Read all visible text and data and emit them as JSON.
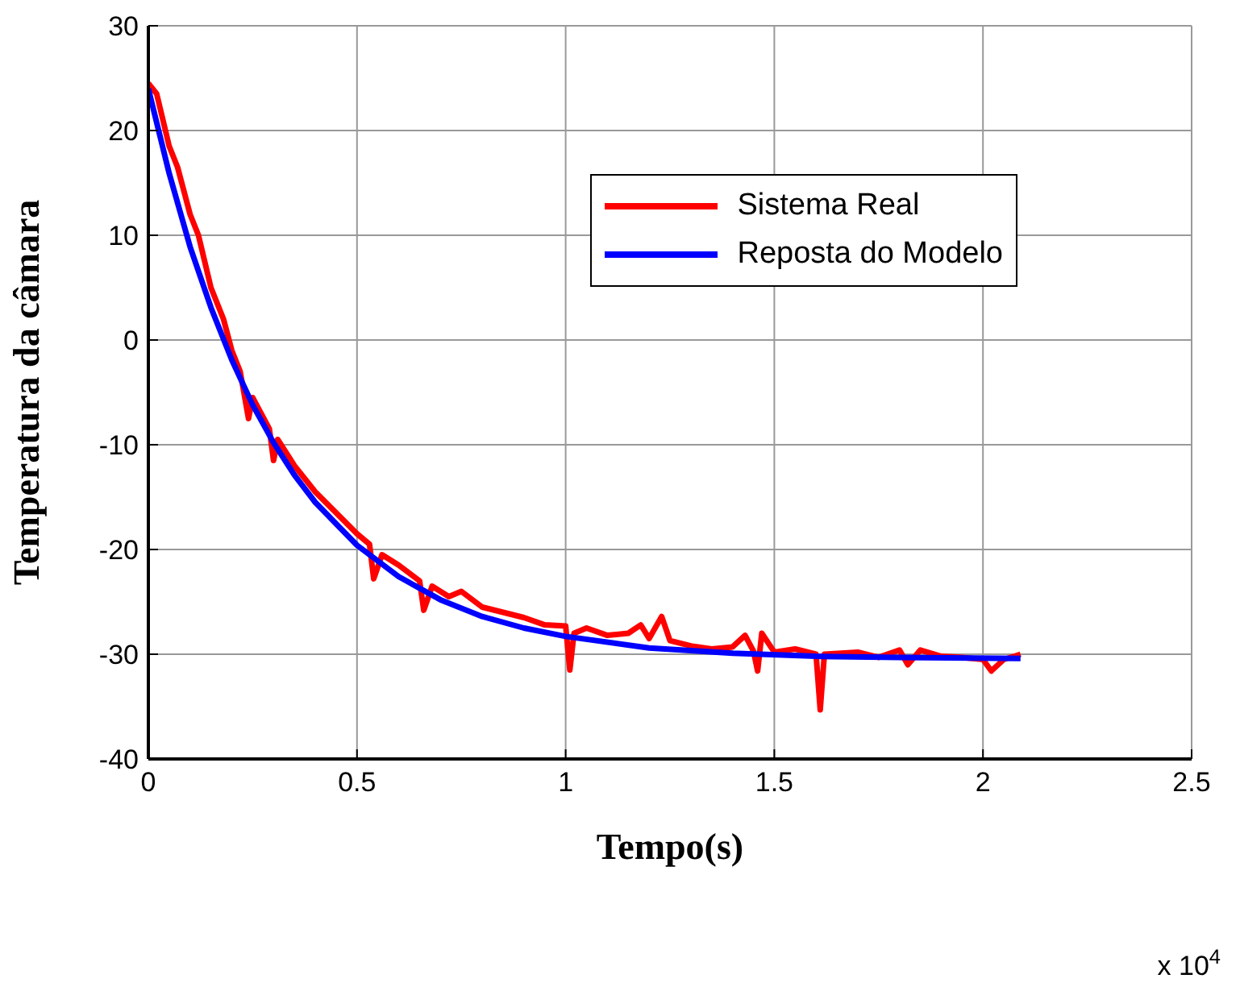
{
  "chart_data": {
    "type": "line",
    "xlabel": "Tempo(s)",
    "ylabel": "Temperatura da câmara",
    "annotations": [
      "x 10$^{4}$"
    ],
    "xlim": [
      0,
      2.5
    ],
    "xticks": [
      0,
      0.5,
      1,
      1.5,
      2,
      2.5
    ],
    "ylim": [
      -40,
      30
    ],
    "yticks": [
      -40,
      -30,
      -20,
      -10,
      0,
      10,
      20,
      30
    ],
    "grid": true,
    "legend": "top right",
    "line_style": "solid",
    "marker": "none",
    "series": [
      {
        "name": "Sistema Real",
        "color": "#ff0000",
        "x": [
          0,
          0.02,
          0.05,
          0.07,
          0.1,
          0.12,
          0.15,
          0.18,
          0.2,
          0.22,
          0.24,
          0.25,
          0.27,
          0.29,
          0.3,
          0.31,
          0.35,
          0.4,
          0.45,
          0.5,
          0.53,
          0.54,
          0.56,
          0.6,
          0.65,
          0.66,
          0.68,
          0.72,
          0.75,
          0.8,
          0.85,
          0.9,
          0.95,
          1.0,
          1.01,
          1.02,
          1.05,
          1.1,
          1.15,
          1.18,
          1.2,
          1.23,
          1.25,
          1.3,
          1.35,
          1.4,
          1.43,
          1.45,
          1.46,
          1.47,
          1.5,
          1.55,
          1.6,
          1.61,
          1.62,
          1.7,
          1.75,
          1.8,
          1.82,
          1.85,
          1.9,
          1.95,
          2.0,
          2.02,
          2.05,
          2.09
        ],
        "values": [
          24.5,
          23.5,
          18.5,
          16.5,
          12,
          10,
          5,
          2,
          -1,
          -3,
          -7.5,
          -5.5,
          -7,
          -8.5,
          -11.5,
          -9.5,
          -12,
          -14.5,
          -16.5,
          -18.5,
          -19.5,
          -22.8,
          -20.5,
          -21.5,
          -23,
          -25.8,
          -23.5,
          -24.5,
          -24,
          -25.5,
          -26,
          -26.5,
          -27.2,
          -27.3,
          -31.5,
          -28,
          -27.5,
          -28.2,
          -28,
          -27.2,
          -28.5,
          -26.4,
          -28.7,
          -29.2,
          -29.5,
          -29.3,
          -28.2,
          -29.7,
          -31.6,
          -28,
          -29.8,
          -29.5,
          -30,
          -35.3,
          -30,
          -29.8,
          -30.3,
          -29.6,
          -31,
          -29.6,
          -30.2,
          -30.3,
          -30.5,
          -31.6,
          -30.5,
          -30
        ]
      },
      {
        "name": "Reposta do Modelo",
        "color": "#0000ff",
        "x": [
          0,
          0.05,
          0.1,
          0.15,
          0.2,
          0.25,
          0.3,
          0.35,
          0.4,
          0.5,
          0.6,
          0.7,
          0.8,
          0.9,
          1.0,
          1.2,
          1.4,
          1.6,
          1.8,
          2.09
        ],
        "values": [
          24,
          15.9,
          8.9,
          3.1,
          -1.9,
          -6.2,
          -9.8,
          -12.9,
          -15.5,
          -19.6,
          -22.6,
          -24.8,
          -26.4,
          -27.5,
          -28.3,
          -29.4,
          -29.9,
          -30.2,
          -30.3,
          -30.4
        ]
      }
    ]
  }
}
